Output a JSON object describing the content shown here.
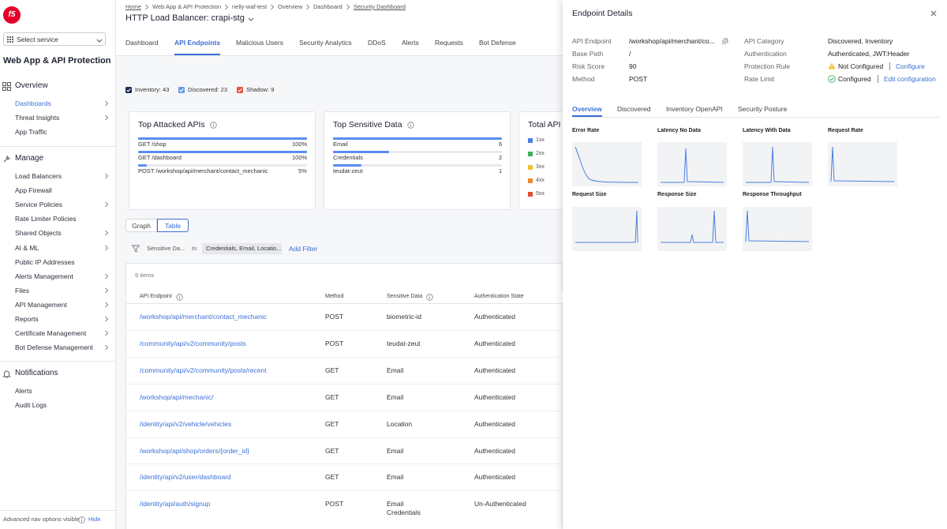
{
  "logo": "f5",
  "sidebar": {
    "service_select": "Select service",
    "app_title": "Web App & API Protection",
    "sections": [
      {
        "title": "Overview",
        "items": [
          "Dashboards",
          "Threat Insights",
          "App Traffic"
        ],
        "expandable": [
          true,
          true,
          false
        ]
      },
      {
        "title": "Manage",
        "items": [
          "Load Balancers",
          "App Firewall",
          "Service Policies",
          "Rate Limiter Policies",
          "Shared Objects",
          "AI & ML",
          "Public IP Addresses",
          "Alerts Management",
          "Files",
          "API Management",
          "Reports",
          "Certificate Management",
          "Bot Defense Management"
        ],
        "expandable": [
          true,
          false,
          true,
          false,
          true,
          true,
          false,
          true,
          true,
          true,
          true,
          true,
          true
        ]
      },
      {
        "title": "Notifications",
        "items": [
          "Alerts",
          "Audit Logs"
        ],
        "expandable": [
          false,
          false
        ]
      }
    ],
    "active": [
      0,
      0
    ],
    "footer": "Advanced nav options visible",
    "footer_action": "Hide"
  },
  "header": {
    "breadcrumb": [
      "Home",
      "Web App & API Protection",
      "nelly-waf-test",
      "Overview",
      "Dashboard",
      "Security Dashboard"
    ],
    "title": "HTTP Load Balancer: crapi-stg",
    "tabs": [
      "Dashboard",
      "API Endpoints",
      "Malicious Users",
      "Security Analytics",
      "DDoS",
      "Alerts",
      "Requests",
      "Bot Defense"
    ],
    "active_tab": 1
  },
  "filters": [
    {
      "label": "Inventory: 43",
      "color": "#1d2b4f"
    },
    {
      "label": "Discovered: 23",
      "color": "#6b9ae8"
    },
    {
      "label": "Shadow: 9",
      "color": "#e5533d"
    }
  ],
  "cards": {
    "top_attacked": {
      "title": "Top Attacked APIs",
      "items": [
        "GET /shop",
        "GET /dashboard",
        "POST /workshop/api/merchant/contact_mechanic"
      ],
      "values": [
        100,
        100,
        5
      ],
      "value_labels": [
        "100%",
        "100%",
        "5%"
      ]
    },
    "top_sensitive": {
      "title": "Top Sensitive Data",
      "items": [
        "Email",
        "Credentials",
        "teudat-zeut"
      ],
      "values": [
        6,
        2,
        1
      ]
    },
    "total_api": {
      "title": "Total API",
      "legend": [
        {
          "label": "1xx",
          "color": "#4a7fe0"
        },
        {
          "label": "2xx",
          "color": "#3fae5a"
        },
        {
          "label": "3xx",
          "color": "#f1c232"
        },
        {
          "label": "4xx",
          "color": "#ee8a2e"
        },
        {
          "label": "5xx",
          "color": "#e14b32"
        }
      ]
    }
  },
  "view_toggle": [
    "Graph",
    "Table"
  ],
  "active_view": 1,
  "filter_bar": {
    "field": "Sensitive Da...",
    "operator": "In",
    "value": "Credentials, Email, Locatio...",
    "add": "Add Filter"
  },
  "table": {
    "count": "9 items",
    "columns": [
      "API Endpoint",
      "Method",
      "Sensitive Data",
      "Authentication State"
    ],
    "rows": [
      [
        "/workshop/api/merchant/contact_mechanic",
        "POST",
        "biometric-id",
        "Authenticated"
      ],
      [
        "/community/api/v2/community/posts",
        "POST",
        "teudat-zeut",
        "Authenticated"
      ],
      [
        "/community/api/v2/community/posts/recent",
        "GET",
        "Email",
        "Authenticated"
      ],
      [
        "/workshop/api/mechanic/",
        "GET",
        "Email",
        "Authenticated"
      ],
      [
        "/identity/api/v2/vehicle/vehicles",
        "GET",
        "Location",
        "Authenticated"
      ],
      [
        "/workshop/api/shop/orders/{order_id}",
        "GET",
        "Email",
        "Authenticated"
      ],
      [
        "/identity/api/v2/user/dashboard",
        "GET",
        "Email",
        "Authenticated"
      ],
      [
        "/identity/api/auth/signup",
        "POST",
        [
          "Email",
          "Credentials"
        ],
        "Un-Authenticated"
      ]
    ]
  },
  "panel": {
    "title": "Endpoint Details",
    "details_left": [
      {
        "label": "API Endpoint",
        "value": "/workshop/api/merchant/co..."
      },
      {
        "label": "Base Path",
        "value": "/"
      },
      {
        "label": "Risk Score",
        "value": 90
      },
      {
        "label": "Method",
        "value": "POST"
      }
    ],
    "details_right": [
      {
        "label": "API Category",
        "value": "Discovered, Inventory"
      },
      {
        "label": "Authentication",
        "value": "Authenticated, JWT:Header"
      },
      {
        "label": "Protection Rule",
        "value": "Not Configured",
        "status": "warning",
        "action": "Configure"
      },
      {
        "label": "Rate Limit",
        "value": "Configured",
        "status": "ok",
        "action": "Edit configuration"
      }
    ],
    "tabs": [
      "Overview",
      "Discovered",
      "Inventory OpenAPI",
      "Security Posture"
    ],
    "active_tab": 0,
    "charts": [
      "Error Rate",
      "Latency No Data",
      "Latency With Data",
      "Request Rate",
      "Request Size",
      "Response Size",
      "Response Throughput"
    ]
  }
}
